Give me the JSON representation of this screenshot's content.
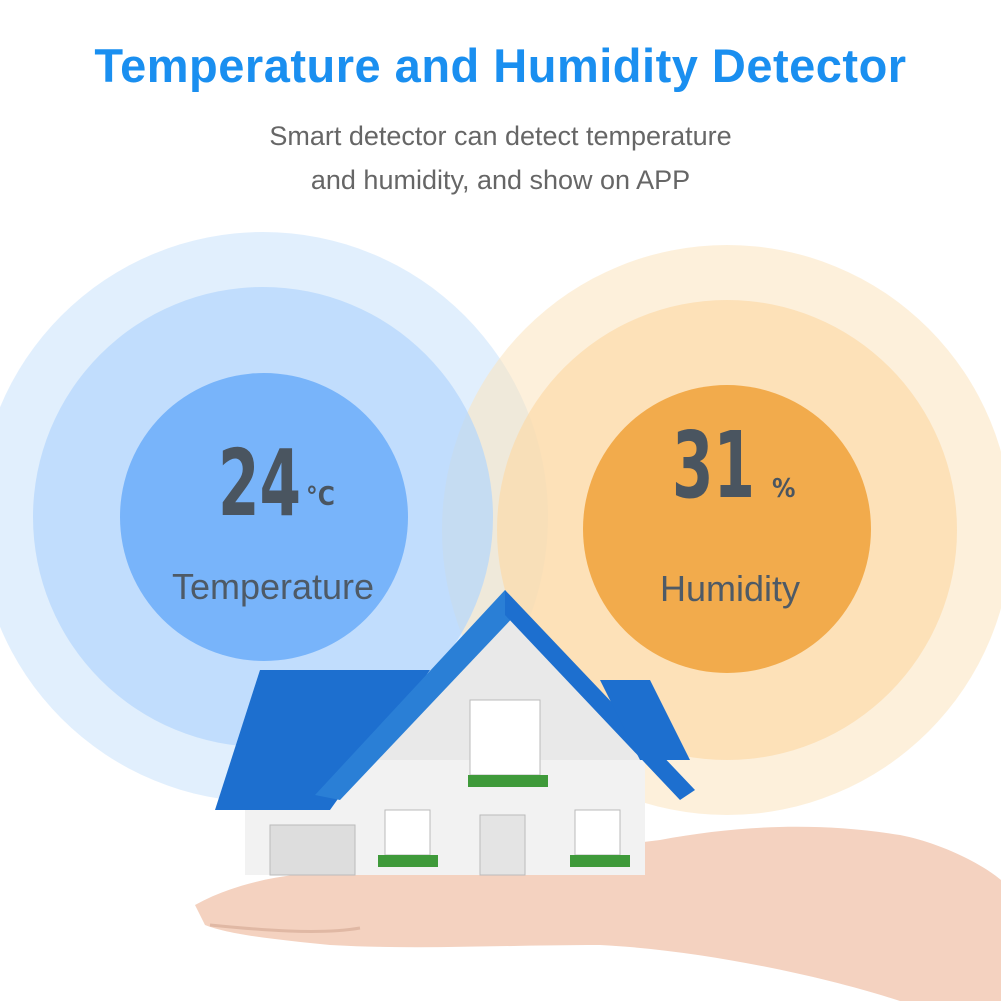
{
  "header": {
    "title": "Temperature and Humidity Detector",
    "subtitle_line1": "Smart detector can detect temperature",
    "subtitle_line2": "and humidity, and show on APP"
  },
  "temperature": {
    "value": "24",
    "unit": "°C",
    "label": "Temperature"
  },
  "humidity": {
    "value": "31",
    "unit": "%",
    "label": "Humidity"
  },
  "colors": {
    "title": "#1a8ff0",
    "temp_circle": "#78b4fa",
    "humidity_circle": "#f2ab4c",
    "roof": "#1d6fcf"
  }
}
